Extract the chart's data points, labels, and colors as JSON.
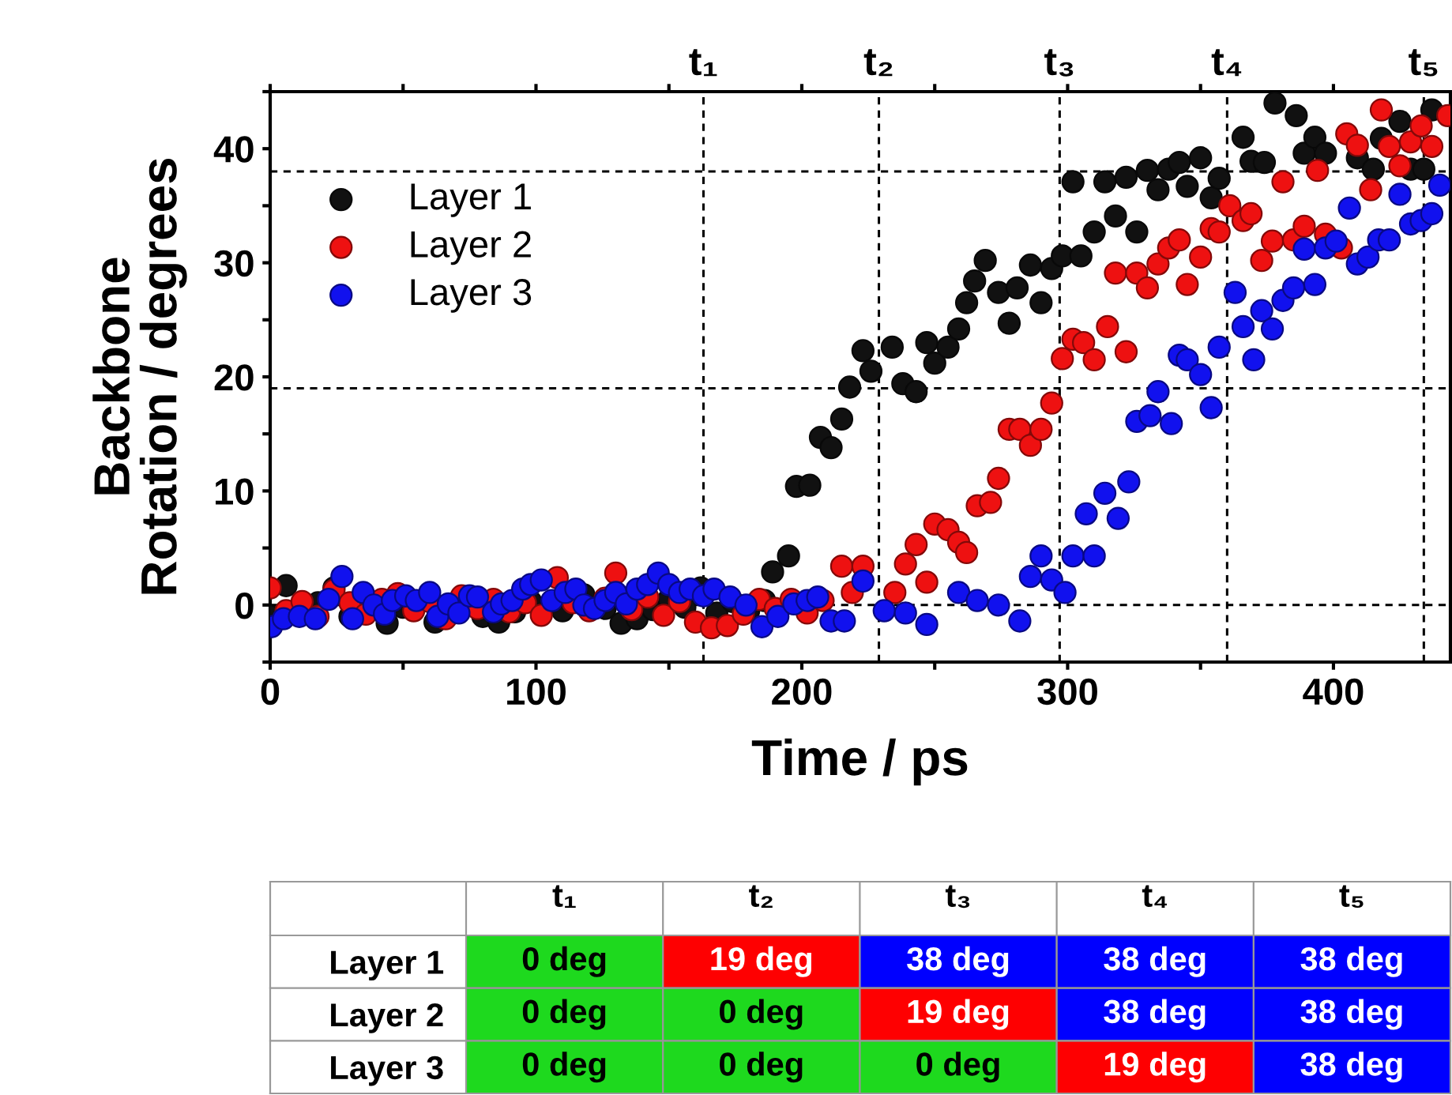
{
  "chart_data": [
    {
      "type": "scatter",
      "xlabel": "Time / ps",
      "ylabel": "Backbone\nRotation / degrees",
      "xlim": [
        0,
        444
      ],
      "ylim": [
        -5,
        45
      ],
      "xticks": [
        0,
        {
          "value": 50,
          "label": null
        },
        100,
        {
          "value": 150,
          "label": null
        },
        200,
        {
          "value": 250,
          "label": null
        },
        300,
        {
          "value": 350,
          "label": null
        },
        400
      ],
      "yticks": [
        {
          "value": -5,
          "label": null
        },
        0,
        {
          "value": 5,
          "label": null
        },
        10,
        {
          "value": 15,
          "label": null
        },
        20,
        {
          "value": 25,
          "label": null
        },
        30,
        {
          "value": 35,
          "label": null
        },
        40,
        {
          "value": 45,
          "label": null
        }
      ],
      "grid": false,
      "legend": "top left",
      "marker": "circle",
      "ref_lines": [
        {
          "axis": "x",
          "value": 163,
          "label": "t₁",
          "color": "#000000",
          "line_style": "dashed"
        },
        {
          "axis": "x",
          "value": 229,
          "label": "t₂",
          "color": "#000000",
          "line_style": "dashed"
        },
        {
          "axis": "x",
          "value": 297,
          "label": "t₃",
          "color": "#000000",
          "line_style": "dashed"
        },
        {
          "axis": "x",
          "value": 360,
          "label": "t₄",
          "color": "#000000",
          "line_style": "dashed"
        },
        {
          "axis": "x",
          "value": 434,
          "label": "t₅",
          "color": "#000000",
          "line_style": "dashed"
        },
        {
          "axis": "y",
          "value": 0,
          "label": null,
          "color": "#000000",
          "line_style": "dashed"
        },
        {
          "axis": "y",
          "value": 19,
          "label": null,
          "color": "#000000",
          "line_style": "dashed"
        },
        {
          "axis": "y",
          "value": 38,
          "label": null,
          "color": "#000000",
          "line_style": "dashed"
        }
      ],
      "series": [
        {
          "name": "Layer 1",
          "color": "#111111",
          "x": [
            0,
            6,
            18,
            24,
            30,
            44,
            50,
            62,
            80,
            86,
            92,
            98,
            110,
            118,
            126,
            132,
            138,
            144,
            150,
            156,
            162,
            168,
            174,
            180,
            186,
            189,
            195,
            198,
            203,
            207,
            211,
            215,
            218,
            223,
            226,
            234,
            238,
            243,
            247,
            250,
            255,
            259,
            262,
            265,
            269,
            274,
            278,
            281,
            286,
            290,
            294,
            298,
            302,
            305,
            310,
            314,
            318,
            322,
            326,
            330,
            334,
            338,
            342,
            345,
            350,
            354,
            357,
            366,
            369,
            374,
            378,
            386,
            389,
            393,
            397,
            409,
            415,
            418,
            425,
            429,
            434,
            437
          ],
          "values": [
            -1,
            1.7,
            0.2,
            1.5,
            -1,
            -1.6,
            -0.2,
            -1.5,
            -1,
            -1.5,
            -0.6,
            0.3,
            -0.5,
            0.9,
            -0.3,
            -1.6,
            -1.2,
            -0.4,
            0.5,
            -0.2,
            1.5,
            -0.7,
            0.3,
            -0.5,
            0.4,
            2.9,
            4.3,
            10.4,
            10.5,
            14.7,
            13.8,
            16.3,
            19.1,
            22.3,
            20.5,
            22.6,
            19.4,
            18.7,
            23.0,
            21.2,
            22.6,
            24.2,
            26.5,
            28.4,
            30.2,
            27.4,
            24.7,
            27.8,
            29.8,
            26.5,
            29.5,
            30.6,
            37.1,
            30.6,
            32.7,
            37.1,
            34.1,
            37.5,
            32.7,
            38.1,
            36.4,
            38.2,
            38.8,
            36.7,
            39.2,
            35.7,
            37.4,
            41.0,
            38.9,
            38.8,
            44.0,
            42.9,
            39.6,
            41.0,
            39.6,
            39.2,
            38.2,
            40.9,
            42.4,
            38.2,
            38.2,
            43.4
          ]
        },
        {
          "name": "Layer 2",
          "color": "#ee1111",
          "x": [
            0,
            6,
            12,
            18,
            24,
            30,
            36,
            42,
            48,
            54,
            60,
            66,
            72,
            78,
            84,
            90,
            96,
            102,
            108,
            114,
            120,
            126,
            130,
            136,
            142,
            148,
            154,
            160,
            166,
            172,
            178,
            184,
            190,
            196,
            202,
            208,
            215,
            219,
            223,
            235,
            239,
            243,
            247,
            250,
            255,
            259,
            262,
            266,
            271,
            274,
            278,
            282,
            286,
            290,
            294,
            298,
            302,
            306,
            310,
            315,
            318,
            322,
            326,
            330,
            334,
            338,
            342,
            345,
            350,
            354,
            357,
            361,
            366,
            369,
            373,
            377,
            381,
            385,
            389,
            394,
            397,
            403,
            405,
            409,
            414,
            418,
            421,
            425,
            429,
            433,
            437,
            443
          ],
          "values": [
            1.5,
            -0.5,
            0.3,
            -1,
            1.3,
            0.2,
            -0.8,
            0.5,
            1,
            -0.5,
            0.3,
            -1.2,
            0.8,
            -0.3,
            0.5,
            -0.6,
            0.2,
            -0.9,
            2.4,
            0.2,
            -0.5,
            0.6,
            2.8,
            -0.4,
            0.7,
            -0.9,
            0.3,
            -1.5,
            -2,
            -1.8,
            -0.8,
            0.5,
            -0.3,
            0.5,
            -0.7,
            0.4,
            3.4,
            1.1,
            3.4,
            1.1,
            3.6,
            5.3,
            2.0,
            7.1,
            6.6,
            5.5,
            4.6,
            8.7,
            9.0,
            11.1,
            15.4,
            15.4,
            14.0,
            15.4,
            17.7,
            21.6,
            23.3,
            23.0,
            21.5,
            24.4,
            29.1,
            22.2,
            29.1,
            27.8,
            29.9,
            31.3,
            32.0,
            28.1,
            30.5,
            33.0,
            32.7,
            35.0,
            33.7,
            34.3,
            30.2,
            31.9,
            37.1,
            32.0,
            33.2,
            38.1,
            32.5,
            31.3,
            41.3,
            40.3,
            36.4,
            43.4,
            40.2,
            38.5,
            40.6,
            42.0,
            40.2,
            42.9
          ]
        },
        {
          "name": "Layer 3",
          "color": "#1111ee",
          "x": [
            0.5,
            5,
            11,
            17,
            22,
            27,
            31,
            35,
            39,
            43,
            46,
            51,
            55,
            60,
            63,
            67,
            71,
            75,
            78,
            84,
            87,
            91,
            95,
            98,
            102,
            106,
            111,
            115,
            118,
            122,
            126,
            130,
            134,
            138,
            142,
            146,
            150,
            154,
            158,
            163,
            167,
            173,
            179,
            185,
            191,
            197,
            202,
            206,
            211,
            216,
            223,
            231,
            239,
            247,
            259,
            266,
            274,
            282,
            286,
            290,
            294,
            299,
            302,
            307,
            310,
            314,
            319,
            323,
            326,
            331,
            334,
            339,
            342,
            345,
            350,
            354,
            357,
            363,
            366,
            370,
            373,
            377,
            381,
            385,
            389,
            393,
            397,
            401,
            406,
            409,
            413,
            417,
            421,
            425,
            429,
            433,
            437,
            440
          ],
          "values": [
            -1.9,
            -1.2,
            -1,
            -1.2,
            0.5,
            2.5,
            -1.2,
            1.1,
            0,
            -0.8,
            0.4,
            0.8,
            0.4,
            1.1,
            -1,
            0.1,
            -0.7,
            0.8,
            0.7,
            -0.6,
            0.1,
            0.4,
            1.4,
            1.8,
            2.2,
            0.4,
            1.1,
            1.4,
            0,
            -0.3,
            0.4,
            1.1,
            0.1,
            1.4,
            1.8,
            2.8,
            1.8,
            1.1,
            1.4,
            0.8,
            1.4,
            0.7,
            0,
            -1.9,
            -1,
            0.1,
            0.4,
            0.7,
            -1.4,
            -1.4,
            2.1,
            -0.5,
            -0.7,
            -1.7,
            1.1,
            0.4,
            0,
            -1.4,
            2.5,
            4.3,
            2.2,
            1.1,
            4.3,
            8.0,
            4.3,
            9.8,
            7.6,
            10.8,
            16.1,
            16.6,
            18.7,
            15.9,
            21.9,
            21.5,
            20.2,
            17.3,
            22.6,
            27.4,
            24.4,
            21.5,
            25.8,
            24.2,
            26.7,
            27.8,
            31.2,
            28.1,
            31.3,
            31.9,
            34.8,
            29.9,
            30.5,
            32.0,
            32.0,
            36.0,
            33.4,
            33.7,
            34.3,
            36.8
          ]
        }
      ]
    },
    {
      "type": "heatmap",
      "categories": [
        "t₁",
        "t₂",
        "t₃",
        "t₄",
        "t₅"
      ],
      "y_categories": [
        "Layer 1",
        "Layer 2",
        "Layer 3"
      ],
      "cells": [
        [
          0,
          19,
          38,
          38,
          38
        ],
        [
          0,
          0,
          19,
          38,
          38
        ],
        [
          0,
          0,
          0,
          19,
          38
        ]
      ],
      "cell_labels": [
        [
          "0 deg",
          "19 deg",
          "38 deg",
          "38 deg",
          "38 deg"
        ],
        [
          "0 deg",
          "0 deg",
          "19 deg",
          "38 deg",
          "38 deg"
        ],
        [
          "0 deg",
          "0 deg",
          "0 deg",
          "19 deg",
          "38 deg"
        ]
      ],
      "colors": [
        "#1ed91e",
        "#ff0000",
        "#0000ff"
      ]
    }
  ]
}
